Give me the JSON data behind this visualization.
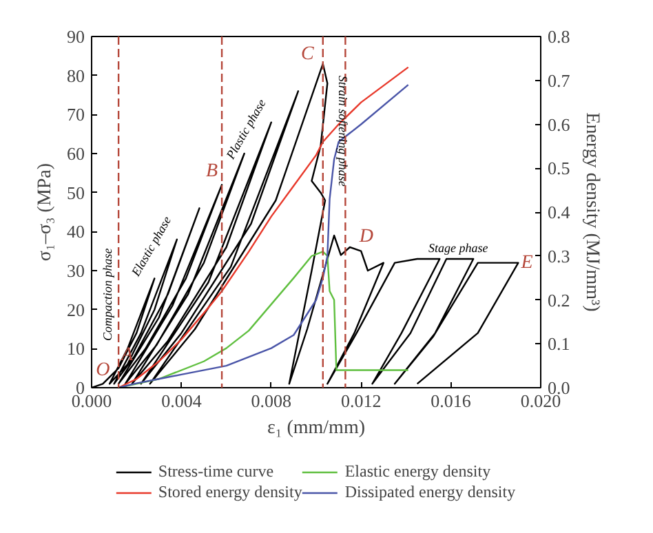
{
  "chart_data": {
    "type": "line",
    "xlabel": "ε₁ (mm/mm)",
    "ylabel": "σ₁–σ₃ (MPa)",
    "y2label": "Energy density (MJ/mm³)",
    "xlim": [
      0,
      0.02
    ],
    "ylim": [
      0,
      90
    ],
    "y2lim": [
      0,
      0.8
    ],
    "xticks": [
      {
        "value": 0,
        "label": "0.000"
      },
      {
        "value": 0.004,
        "label": "0.004"
      },
      {
        "value": 0.008,
        "label": "0.008"
      },
      {
        "value": 0.012,
        "label": "0.012"
      },
      {
        "value": 0.016,
        "label": "0.016"
      },
      {
        "value": 0.02,
        "label": "0.020"
      }
    ],
    "yticks": [
      0,
      10,
      20,
      30,
      40,
      50,
      60,
      70,
      80,
      90
    ],
    "y2ticks": [
      {
        "value": 0,
        "label": "0.0"
      },
      {
        "value": 0.1,
        "label": "0.1"
      },
      {
        "value": 0.2,
        "label": "0.2"
      },
      {
        "value": 0.3,
        "label": "0.3"
      },
      {
        "value": 0.4,
        "label": "0.4"
      },
      {
        "value": 0.5,
        "label": "0.5"
      },
      {
        "value": 0.6,
        "label": "0.6"
      },
      {
        "value": 0.7,
        "label": "0.7"
      },
      {
        "value": 0.8,
        "label": "0.8"
      }
    ],
    "series": [
      {
        "name": "Stress-time curve",
        "color": "#000000",
        "x": [
          0.0,
          0.0005,
          0.0012,
          0.002,
          0.0028,
          0.0016,
          0.0008,
          0.0016,
          0.0028,
          0.0038,
          0.0022,
          0.001,
          0.0019,
          0.0034,
          0.0048,
          0.003,
          0.0012,
          0.0024,
          0.0042,
          0.0058,
          0.0036,
          0.0015,
          0.0029,
          0.005,
          0.0068,
          0.0043,
          0.0018,
          0.0034,
          0.006,
          0.008,
          0.0052,
          0.0022,
          0.004,
          0.0071,
          0.0092,
          0.0062,
          0.0026,
          0.0046,
          0.0082,
          0.0103,
          0.0105,
          0.0102,
          0.0098,
          0.0102,
          0.0104,
          0.0098,
          0.0088,
          0.0096,
          0.0108,
          0.0111,
          0.0115,
          0.012,
          0.0123,
          0.013,
          0.0117,
          0.0105,
          0.0118,
          0.0135,
          0.0145,
          0.0155,
          0.0138,
          0.0125,
          0.0142,
          0.0158,
          0.017,
          0.0153,
          0.0135,
          0.0152,
          0.0172,
          0.019,
          0.0172,
          0.0145
        ],
        "values": [
          0,
          1,
          5,
          14,
          28,
          10,
          1,
          6,
          20,
          38,
          14,
          1,
          8,
          24,
          46,
          18,
          1,
          10,
          28,
          52,
          21,
          1,
          11,
          32,
          60,
          24,
          1,
          12,
          36,
          68,
          27,
          1,
          14,
          42,
          76,
          31,
          1,
          15,
          48,
          83,
          78,
          62,
          53,
          50,
          48,
          30,
          1,
          15,
          39,
          34,
          36,
          35,
          30,
          32,
          14,
          1,
          14,
          32,
          33,
          33,
          14,
          1,
          14,
          33,
          33,
          14,
          1,
          13,
          32,
          32,
          14,
          1
        ]
      },
      {
        "name": "Stored energy density",
        "color": "#e8392b",
        "axis": "y2",
        "x": [
          0.0012,
          0.002,
          0.003,
          0.004,
          0.005,
          0.0058,
          0.007,
          0.008,
          0.009,
          0.01,
          0.0103,
          0.011,
          0.012,
          0.0141
        ],
        "values": [
          0.0,
          0.02,
          0.06,
          0.11,
          0.17,
          0.22,
          0.31,
          0.39,
          0.46,
          0.53,
          0.56,
          0.6,
          0.65,
          0.73
        ]
      },
      {
        "name": "Elastic energy density",
        "color": "#5fbf3f",
        "axis": "y2",
        "x": [
          0.0012,
          0.003,
          0.005,
          0.006,
          0.007,
          0.008,
          0.009,
          0.0098,
          0.0103,
          0.0105,
          0.0106,
          0.0108,
          0.0109,
          0.0141
        ],
        "values": [
          0.0,
          0.02,
          0.06,
          0.09,
          0.13,
          0.19,
          0.25,
          0.3,
          0.31,
          0.3,
          0.22,
          0.2,
          0.04,
          0.04
        ]
      },
      {
        "name": "Dissipated energy density",
        "color": "#4a55a8",
        "axis": "y2",
        "x": [
          0.0012,
          0.002,
          0.003,
          0.004,
          0.006,
          0.008,
          0.009,
          0.01,
          0.0103,
          0.0105,
          0.0106,
          0.0108,
          0.011,
          0.012,
          0.0141
        ],
        "values": [
          0.0,
          0.01,
          0.02,
          0.03,
          0.05,
          0.09,
          0.12,
          0.2,
          0.25,
          0.3,
          0.43,
          0.52,
          0.56,
          0.6,
          0.69
        ]
      }
    ],
    "ref_lines": [
      {
        "axis": "x",
        "value": 0.0012,
        "color": "#b5473a",
        "line_style": "dashed"
      },
      {
        "axis": "x",
        "value": 0.0058,
        "color": "#b5473a",
        "line_style": "dashed"
      },
      {
        "axis": "x",
        "value": 0.0103,
        "color": "#b5473a",
        "line_style": "dashed"
      },
      {
        "axis": "x",
        "value": 0.0113,
        "color": "#b5473a",
        "line_style": "dashed"
      }
    ],
    "annotations": [
      {
        "text": "O",
        "x": 0.0005,
        "y": 1
      },
      {
        "text": "A",
        "x": 0.0012,
        "y": 5
      },
      {
        "text": "B",
        "x": 0.0058,
        "y": 52
      },
      {
        "text": "C",
        "x": 0.0099,
        "y": 82
      },
      {
        "text": "D",
        "x": 0.0118,
        "y": 36
      },
      {
        "text": "E",
        "x": 0.019,
        "y": 32
      },
      {
        "text": "Compaction phase",
        "x": 0.001,
        "y": 12
      },
      {
        "text": "Elastic phase",
        "x": 0.0028,
        "y": 28
      },
      {
        "text": "Plastic phase",
        "x": 0.0064,
        "y": 58
      },
      {
        "text": "Strain softening phase",
        "x": 0.0112,
        "y": 80
      },
      {
        "text": "Stage phase",
        "x": 0.015,
        "y": 34
      }
    ],
    "legend": "bottom",
    "grid": false,
    "marker": "none",
    "line_style": "solid"
  }
}
